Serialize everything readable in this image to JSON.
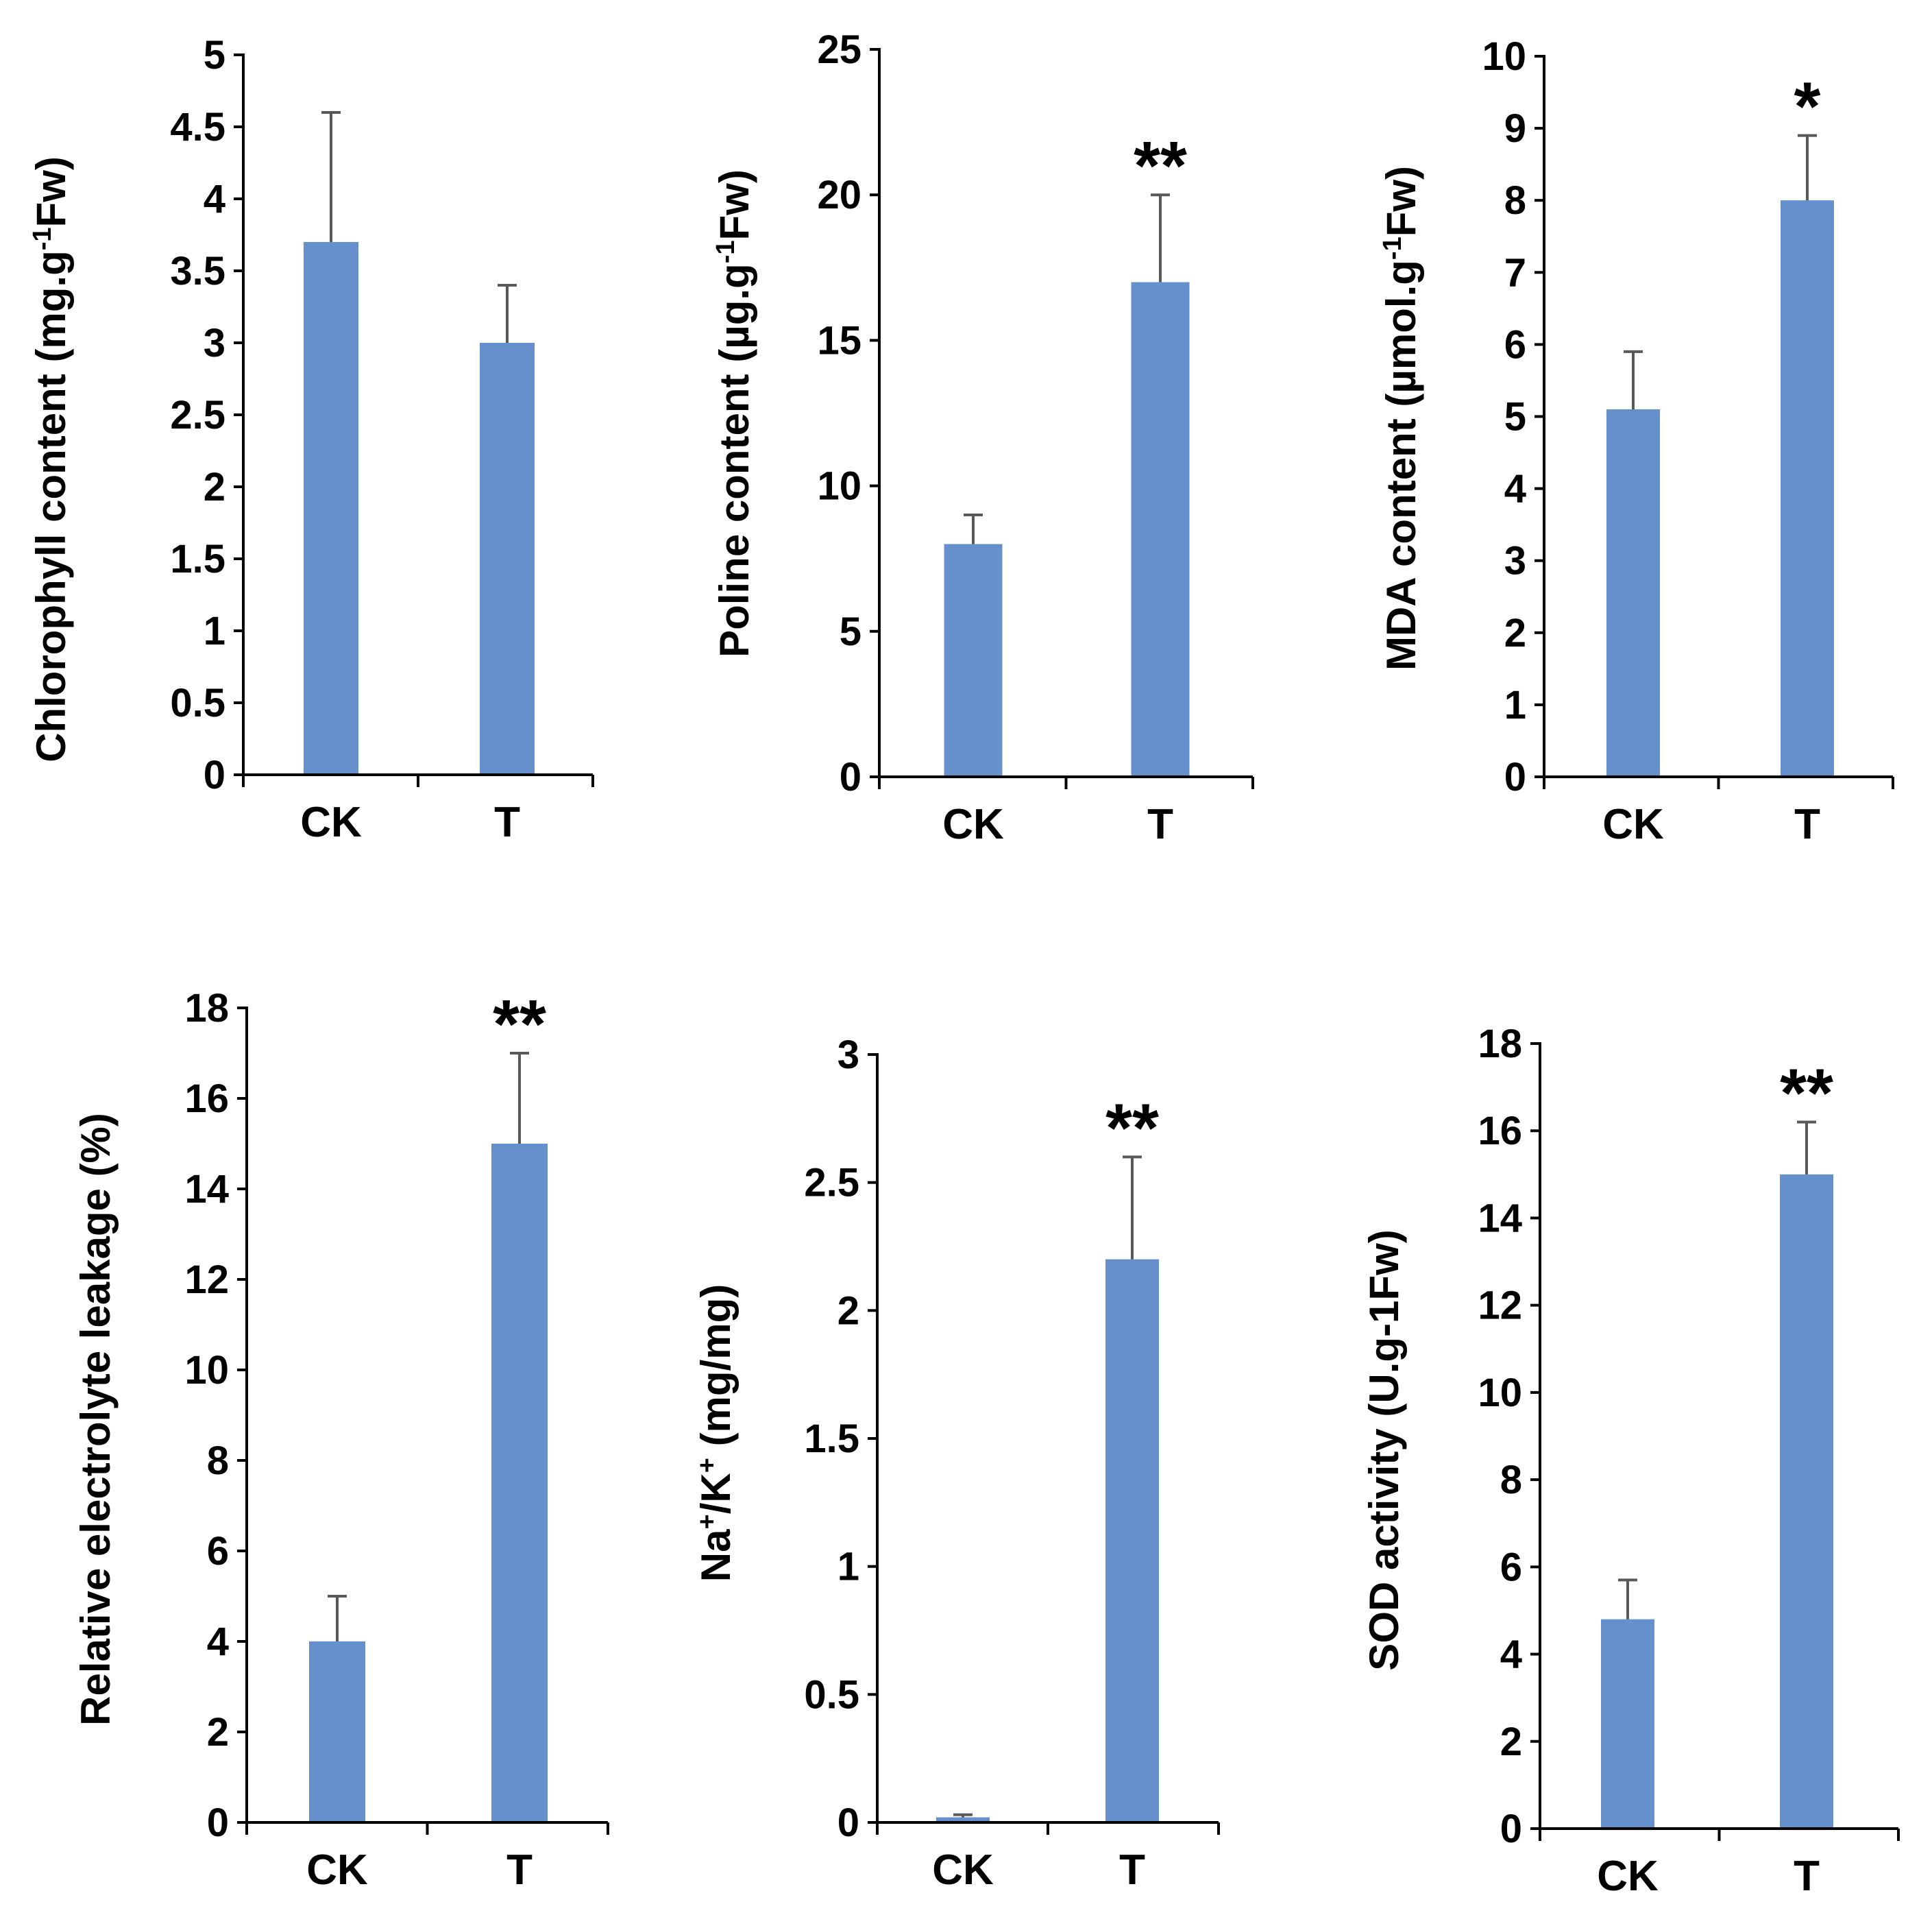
{
  "colors": {
    "bar": "#6590cc",
    "axis": "#000000",
    "error_bar": "#595959",
    "text": "#000000",
    "background": "#ffffff"
  },
  "chart_data": [
    {
      "type": "bar",
      "categories": [
        "CK",
        "T"
      ],
      "values": [
        3.7,
        3.0
      ],
      "errors": [
        0.9,
        0.4
      ],
      "significance": [
        "",
        ""
      ],
      "ylabel": "Chlorophyll content (mg.g-1Fw)",
      "ylabel_parts": [
        {
          "text": "Chlorophyll content (mg.g"
        },
        {
          "text": "-1",
          "sup": true
        },
        {
          "text": "Fw)"
        }
      ],
      "ylim": [
        0,
        5
      ],
      "yticks": [
        0,
        0.5,
        1,
        1.5,
        2,
        2.5,
        3,
        3.5,
        4,
        4.5,
        5
      ],
      "ytick_labels": [
        "0",
        "0.5",
        "1",
        "1.5",
        "2",
        "2.5",
        "3",
        "3.5",
        "4",
        "4.5",
        "5"
      ]
    },
    {
      "type": "bar",
      "categories": [
        "CK",
        "T"
      ],
      "values": [
        8,
        17
      ],
      "errors": [
        1,
        3
      ],
      "significance": [
        "",
        "**"
      ],
      "ylabel": "Poline content (µg.g-1Fw)",
      "ylabel_parts": [
        {
          "text": "Poline content (µg.g"
        },
        {
          "text": "-1",
          "sup": true
        },
        {
          "text": "Fw)"
        }
      ],
      "ylim": [
        0,
        25
      ],
      "yticks": [
        0,
        5,
        10,
        15,
        20,
        25
      ],
      "ytick_labels": [
        "0",
        "5",
        "10",
        "15",
        "20",
        "25"
      ]
    },
    {
      "type": "bar",
      "categories": [
        "CK",
        "T"
      ],
      "values": [
        5.1,
        8.0
      ],
      "errors": [
        0.8,
        0.9
      ],
      "significance": [
        "",
        "*"
      ],
      "ylabel": "MDA content (µmol.g-1Fw)",
      "ylabel_parts": [
        {
          "text": "MDA content (µmol.g"
        },
        {
          "text": "-1",
          "sup": true
        },
        {
          "text": "Fw)"
        }
      ],
      "ylim": [
        0,
        10
      ],
      "yticks": [
        0,
        1,
        2,
        3,
        4,
        5,
        6,
        7,
        8,
        9,
        10
      ],
      "ytick_labels": [
        "0",
        "1",
        "2",
        "3",
        "4",
        "5",
        "6",
        "7",
        "8",
        "9",
        "10"
      ]
    },
    {
      "type": "bar",
      "categories": [
        "CK",
        "T"
      ],
      "values": [
        4,
        15
      ],
      "errors": [
        1,
        2
      ],
      "significance": [
        "",
        "**"
      ],
      "ylabel": "Relative electrolyte leakage (%)",
      "ylabel_parts": [
        {
          "text": "Relative electrolyte leakage (%)"
        }
      ],
      "ylim": [
        0,
        18
      ],
      "yticks": [
        0,
        2,
        4,
        6,
        8,
        10,
        12,
        14,
        16,
        18
      ],
      "ytick_labels": [
        "0",
        "2",
        "4",
        "6",
        "8",
        "10",
        "12",
        "14",
        "16",
        "18"
      ]
    },
    {
      "type": "bar",
      "categories": [
        "CK",
        "T"
      ],
      "values": [
        0.02,
        2.2
      ],
      "errors": [
        0.01,
        0.4
      ],
      "significance": [
        "",
        "**"
      ],
      "ylabel": "Na+/K+ (mg/mg)",
      "ylabel_parts": [
        {
          "text": "Na"
        },
        {
          "text": "+",
          "sup": true
        },
        {
          "text": "/K"
        },
        {
          "text": "+",
          "sup": true
        },
        {
          "text": " (mg/mg)"
        }
      ],
      "ylim": [
        0,
        3
      ],
      "yticks": [
        0,
        0.5,
        1,
        1.5,
        2,
        2.5,
        3
      ],
      "ytick_labels": [
        "0",
        "0.5",
        "1",
        "1.5",
        "2",
        "2.5",
        "3"
      ]
    },
    {
      "type": "bar",
      "categories": [
        "CK",
        "T"
      ],
      "values": [
        4.8,
        15
      ],
      "errors": [
        0.9,
        1.2
      ],
      "significance": [
        "",
        "**"
      ],
      "ylabel": "SOD activity (U.g-1Fw)",
      "ylabel_parts": [
        {
          "text": "SOD activity (U.g-1Fw)"
        }
      ],
      "ylim": [
        0,
        18
      ],
      "yticks": [
        0,
        2,
        4,
        6,
        8,
        10,
        12,
        14,
        16,
        18
      ],
      "ytick_labels": [
        "0",
        "2",
        "4",
        "6",
        "8",
        "10",
        "12",
        "14",
        "16",
        "18"
      ]
    }
  ]
}
